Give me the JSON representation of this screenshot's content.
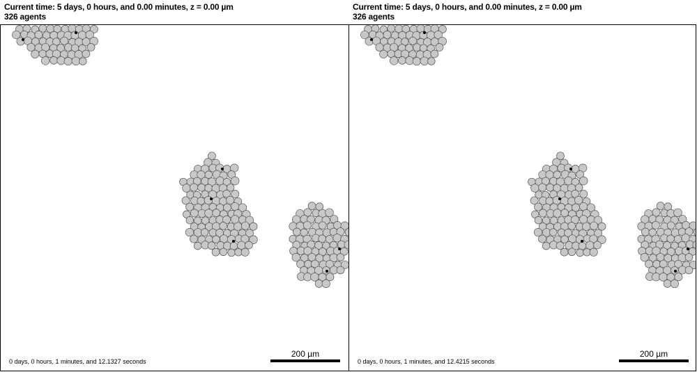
{
  "panels": [
    {
      "time_label": "Current time: 5 days, 0 hours, and 0.00 minutes, z = 0.00 µm",
      "agents_label": "326 agents",
      "elapsed_label": "0 days, 0 hours, 1 minutes, and 12.1327 seconds",
      "scale_label": "200 µm"
    },
    {
      "time_label": "Current time: 5 days, 0 hours, and 0.00 minutes, z = 0.00 µm",
      "agents_label": "326 agents",
      "elapsed_label": "0 days, 0 hours, 1 minutes, and 12.4215 seconds",
      "scale_label": "200 µm"
    }
  ],
  "colors": {
    "cell_fill": "#c8c8c8",
    "cell_stroke": "#555555",
    "dead_cell": "#000000",
    "frame": "#000000"
  }
}
